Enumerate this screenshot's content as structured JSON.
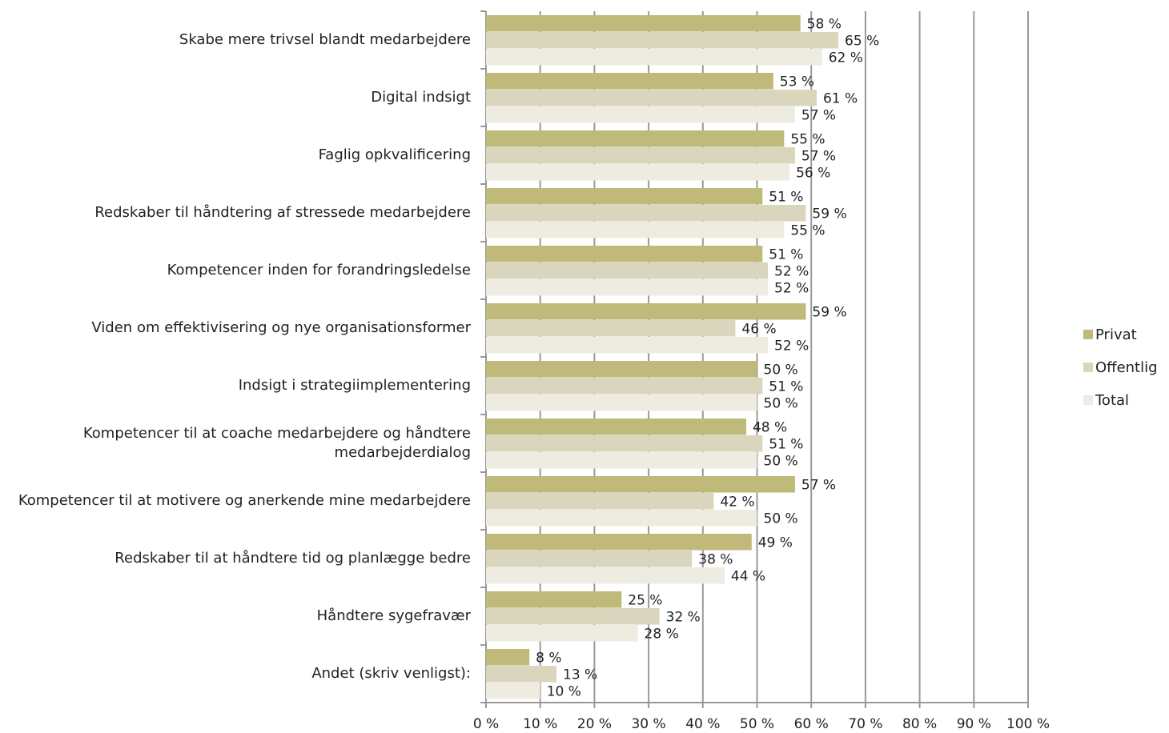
{
  "chart_data": {
    "type": "bar",
    "orientation": "horizontal",
    "categories": [
      "Skabe mere trivsel blandt medarbejdere",
      "Digital indsigt",
      "Faglig opkvalificering",
      "Redskaber til håndtering af stressede medarbejdere",
      "Kompetencer inden for forandringsledelse",
      "Viden om effektivisering og nye organisationsformer",
      "Indsigt i strategiimplementering",
      "Kompetencer til at coache medarbejdere og håndtere medarbejderdialog",
      "Kompetencer til at motivere og anerkende mine medarbejdere",
      "Redskaber til at håndtere tid og planlægge bedre",
      "Håndtere sygefravær",
      "Andet (skriv venligst):"
    ],
    "series": [
      {
        "name": "Privat",
        "color": "#bfb97a",
        "values": [
          58,
          53,
          55,
          51,
          51,
          59,
          50,
          48,
          57,
          49,
          25,
          8
        ],
        "value_labels": [
          "58 %",
          "53 %",
          "55 %",
          "51 %",
          "51 %",
          "59 %",
          "50 %",
          "48 %",
          "57 %",
          "49 %",
          "25 %",
          "8 %"
        ]
      },
      {
        "name": "Offentlig",
        "color": "#d9d6bd",
        "values": [
          65,
          61,
          57,
          59,
          52,
          46,
          51,
          51,
          42,
          38,
          32,
          13
        ],
        "value_labels": [
          "65 %",
          "61 %",
          "57 %",
          "59 %",
          "52 %",
          "46 %",
          "51 %",
          "51 %",
          "42 %",
          "38 %",
          "32 %",
          "13 %"
        ]
      },
      {
        "name": "Total",
        "color": "#eeebe0",
        "values": [
          62,
          57,
          56,
          55,
          52,
          52,
          50,
          50,
          50,
          44,
          28,
          10
        ],
        "value_labels": [
          "62 %",
          "57 %",
          "56 %",
          "55 %",
          "52 %",
          "52 %",
          "50 %",
          "50 %",
          "50 %",
          "44 %",
          "28 %",
          "10 %"
        ]
      }
    ],
    "xlim": [
      0,
      100
    ],
    "xticks": [
      {
        "value": 0,
        "label": "0 %"
      },
      {
        "value": 10,
        "label": "10 %"
      },
      {
        "value": 20,
        "label": "20 %"
      },
      {
        "value": 30,
        "label": "30 %"
      },
      {
        "value": 40,
        "label": "40 %"
      },
      {
        "value": 50,
        "label": "50 %"
      },
      {
        "value": 60,
        "label": "60 %"
      },
      {
        "value": 70,
        "label": "70 %"
      },
      {
        "value": 80,
        "label": "80 %"
      },
      {
        "value": 90,
        "label": "90 %"
      },
      {
        "value": 100,
        "label": "100 %"
      }
    ],
    "grid": true,
    "legend": "right"
  }
}
